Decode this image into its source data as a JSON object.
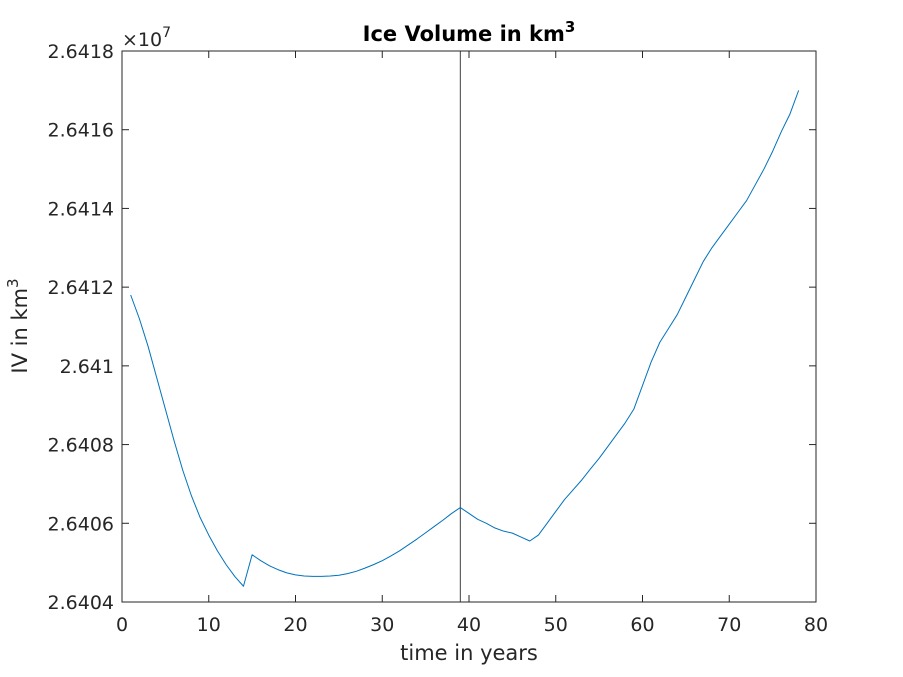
{
  "chart_data": {
    "type": "line",
    "title": "Ice Volume in km",
    "title_superscript": "3",
    "xlabel": "time in years",
    "ylabel": "IV in km",
    "ylabel_superscript": "3",
    "y_exponent_prefix": "×10",
    "y_exponent_power": "7",
    "xlim": [
      0,
      80
    ],
    "ylim": [
      2.6404,
      2.6418
    ],
    "xticks": [
      0,
      10,
      20,
      30,
      40,
      50,
      60,
      70,
      80
    ],
    "xtick_labels": [
      "0",
      "10",
      "20",
      "30",
      "40",
      "50",
      "60",
      "70",
      "80"
    ],
    "yticks": [
      2.6404,
      2.6406,
      2.6408,
      2.641,
      2.6412,
      2.6414,
      2.6416,
      2.6418
    ],
    "ytick_labels": [
      "2.6404",
      "2.6406",
      "2.6408",
      "2.641",
      "2.6412",
      "2.6414",
      "2.6416",
      "2.6418"
    ],
    "grid": false,
    "vertical_line_x": 39,
    "colors": {
      "line": "#0072BD",
      "vline": "#404040",
      "axes": "#262626"
    },
    "series": [
      {
        "x": [
          1,
          2,
          3,
          4,
          5,
          6,
          7,
          8,
          9,
          10,
          11,
          12,
          13,
          14,
          15,
          16,
          17,
          18,
          19,
          20,
          21,
          22,
          23,
          24,
          25,
          26,
          27,
          28,
          29,
          30,
          31,
          32,
          33,
          34,
          35,
          36,
          37,
          38,
          39,
          40,
          41,
          42,
          43,
          44,
          45,
          46,
          47,
          48,
          49,
          50,
          51,
          52,
          53,
          54,
          55,
          56,
          57,
          58,
          59,
          60,
          61,
          62,
          63,
          64,
          65,
          66,
          67,
          68,
          69,
          70,
          71,
          72,
          73,
          74,
          75,
          76,
          77,
          78
        ],
        "y": [
          2.64118,
          2.64112,
          2.64105,
          2.64097,
          2.64089,
          2.64081,
          2.640735,
          2.64067,
          2.640615,
          2.64057,
          2.64053,
          2.640495,
          2.640465,
          2.64044,
          2.64052,
          2.640505,
          2.640492,
          2.640482,
          2.640474,
          2.640469,
          2.640466,
          2.640465,
          2.640465,
          2.640466,
          2.640468,
          2.640472,
          2.640478,
          2.640486,
          2.640495,
          2.640505,
          2.640517,
          2.64053,
          2.640545,
          2.64056,
          2.640576,
          2.640592,
          2.640608,
          2.640625,
          2.64064,
          2.640625,
          2.64061,
          2.6406,
          2.640588,
          2.64058,
          2.640575,
          2.640565,
          2.640555,
          2.64057,
          2.6406,
          2.64063,
          2.64066,
          2.640685,
          2.64071,
          2.640738,
          2.640765,
          2.640795,
          2.640825,
          2.640855,
          2.64089,
          2.64095,
          2.64101,
          2.64106,
          2.641095,
          2.64113,
          2.641175,
          2.64122,
          2.641265,
          2.6413,
          2.64133,
          2.64136,
          2.64139,
          2.64142,
          2.64146,
          2.6415,
          2.641545,
          2.641595,
          2.64164,
          2.6417
        ]
      }
    ]
  }
}
